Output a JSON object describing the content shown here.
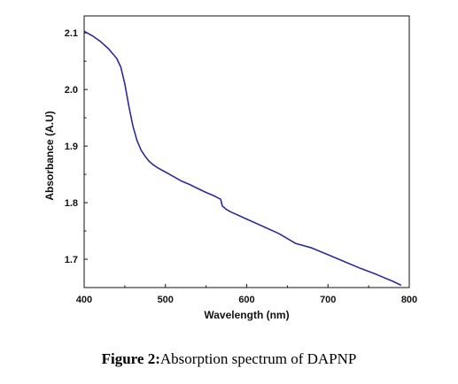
{
  "chart_data": {
    "type": "line",
    "xlabel": "Wavelength (nm)",
    "ylabel": "Absorbance (A.U)",
    "xlim": [
      400,
      800
    ],
    "ylim": [
      1.65,
      2.13
    ],
    "x_ticks": [
      400,
      500,
      600,
      700,
      800
    ],
    "y_ticks": [
      1.7,
      1.8,
      1.9,
      2.0,
      2.1
    ],
    "x_tick_labels": [
      "400",
      "500",
      "600",
      "700",
      "800"
    ],
    "y_tick_labels": [
      "1.7",
      "1.8",
      "1.9",
      "2.0",
      "2.1"
    ],
    "grid": false,
    "line_color": "#2b2b9e",
    "series": [
      {
        "x": [
          400,
          410,
          420,
          430,
          440,
          445,
          450,
          455,
          460,
          465,
          470,
          475,
          480,
          485,
          490,
          500,
          510,
          520,
          530,
          540,
          550,
          560,
          568,
          570,
          575,
          580,
          600,
          620,
          640,
          660,
          680,
          700,
          720,
          740,
          760,
          780,
          790
        ],
        "y": [
          2.103,
          2.095,
          2.085,
          2.072,
          2.055,
          2.04,
          2.01,
          1.97,
          1.935,
          1.91,
          1.893,
          1.882,
          1.873,
          1.867,
          1.862,
          1.854,
          1.846,
          1.838,
          1.832,
          1.825,
          1.818,
          1.812,
          1.806,
          1.794,
          1.788,
          1.784,
          1.771,
          1.758,
          1.745,
          1.728,
          1.72,
          1.708,
          1.696,
          1.684,
          1.673,
          1.661,
          1.654
        ]
      }
    ]
  },
  "caption": {
    "label": "Figure 2:",
    "text": "Absorption spectrum of DAPNP"
  }
}
